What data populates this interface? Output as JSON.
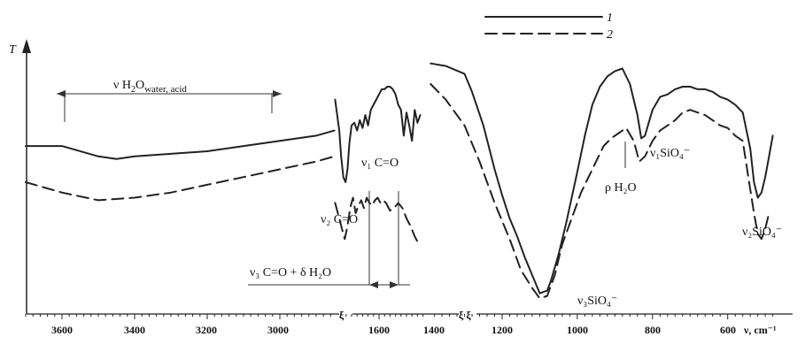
{
  "chart_data": {
    "type": "line",
    "y_axis_label": "T",
    "x_axis_label": "ν, cm⁻¹",
    "x_reversed": true,
    "x_breaks": [
      "1800–1750",
      "1450–1400"
    ],
    "tick_labels": [
      "3600",
      "3400",
      "3200",
      "3000",
      "1600",
      "1400",
      "1200",
      "1000",
      "800",
      "600"
    ],
    "legend": [
      {
        "label": "1",
        "style": "solid"
      },
      {
        "label": "2",
        "style": "dashed"
      }
    ],
    "annotations": {
      "water_acid": {
        "prefix": "ν H",
        "sub": "2",
        "mid": "O",
        "sub2": "water, acid"
      },
      "v1co": "ν₁ C=O",
      "v2co": "ν₂ C=O",
      "v3co": "ν₃ C=O + δ H₂O",
      "rho_h2o": "ρ H₂O",
      "v1sio4": "ν₁SiO₄⁻",
      "v3sio4": "ν₃SiO₄⁻",
      "v2sio4": "ν₂SiO₄⁻"
    },
    "series": [
      {
        "name": "1",
        "segments": [
          {
            "x": [
              3700,
              3600,
              3500,
              3450,
              3400,
              3300,
              3200,
              3100,
              3000,
              2900,
              2850
            ],
            "y": [
              0.64,
              0.64,
              0.6,
              0.59,
              0.6,
              0.61,
              0.62,
              0.64,
              0.66,
              0.68,
              0.7
            ]
          },
          {
            "x": [
              1760,
              1745,
              1738,
              1730,
              1722,
              1715,
              1708,
              1700,
              1690,
              1680,
              1670,
              1660,
              1650,
              1640,
              1630,
              1620,
              1610,
              1600,
              1590,
              1580,
              1570,
              1560,
              1550,
              1540,
              1530,
              1520,
              1510,
              1500,
              1490,
              1480,
              1470,
              1460,
              1450
            ],
            "y": [
              0.82,
              0.7,
              0.6,
              0.52,
              0.5,
              0.55,
              0.65,
              0.72,
              0.73,
              0.7,
              0.74,
              0.71,
              0.76,
              0.72,
              0.78,
              0.8,
              0.82,
              0.84,
              0.86,
              0.86,
              0.87,
              0.87,
              0.86,
              0.84,
              0.8,
              0.78,
              0.68,
              0.77,
              0.72,
              0.66,
              0.78,
              0.73,
              0.76
            ]
          },
          {
            "x": [
              1390,
              1350,
              1300,
              1280,
              1250,
              1220,
              1200,
              1180,
              1160,
              1140,
              1120,
              1100,
              1080,
              1070,
              1050,
              1030,
              1000,
              980,
              960,
              940,
              920,
              900,
              880,
              860,
              840,
              830,
              820,
              800,
              780,
              760,
              740,
              720,
              700,
              680,
              660,
              640,
              620,
              600,
              580,
              560,
              540,
              530,
              520,
              510,
              500,
              490,
              480
            ],
            "y": [
              0.96,
              0.95,
              0.92,
              0.85,
              0.72,
              0.55,
              0.45,
              0.36,
              0.29,
              0.21,
              0.14,
              0.07,
              0.08,
              0.12,
              0.22,
              0.34,
              0.54,
              0.68,
              0.8,
              0.87,
              0.91,
              0.93,
              0.94,
              0.88,
              0.76,
              0.67,
              0.68,
              0.78,
              0.83,
              0.84,
              0.86,
              0.87,
              0.87,
              0.86,
              0.86,
              0.85,
              0.83,
              0.82,
              0.8,
              0.77,
              0.63,
              0.5,
              0.44,
              0.46,
              0.52,
              0.6,
              0.68
            ]
          }
        ]
      },
      {
        "name": "2",
        "segments": [
          {
            "x": [
              3700,
              3600,
              3500,
              3400,
              3300,
              3200,
              3100,
              3000,
              2900,
              2850
            ],
            "y": [
              0.5,
              0.46,
              0.43,
              0.44,
              0.46,
              0.49,
              0.52,
              0.55,
              0.58,
              0.6
            ]
          },
          {
            "x": [
              1760,
              1745,
              1735,
              1725,
              1715,
              1705,
              1695,
              1685,
              1675,
              1665,
              1655,
              1645,
              1635,
              1625,
              1615,
              1605,
              1595,
              1585,
              1575,
              1560,
              1545,
              1530,
              1515,
              1500,
              1485,
              1470,
              1460,
              1450
            ],
            "y": [
              0.42,
              0.36,
              0.32,
              0.28,
              0.33,
              0.4,
              0.44,
              0.38,
              0.41,
              0.43,
              0.4,
              0.44,
              0.42,
              0.41,
              0.43,
              0.44,
              0.42,
              0.43,
              0.42,
              0.39,
              0.4,
              0.42,
              0.4,
              0.36,
              0.33,
              0.29,
              0.27,
              0.26
            ]
          },
          {
            "x": [
              1390,
              1350,
              1300,
              1260,
              1220,
              1180,
              1150,
              1120,
              1100,
              1080,
              1060,
              1040,
              1010,
              990,
              970,
              950,
              930,
              910,
              890,
              870,
              850,
              835,
              820,
              800,
              780,
              760,
              740,
              720,
              700,
              680,
              660,
              640,
              620,
              600,
              580,
              560,
              545,
              530,
              520,
              510,
              500,
              490
            ],
            "y": [
              0.88,
              0.82,
              0.72,
              0.58,
              0.42,
              0.28,
              0.16,
              0.09,
              0.05,
              0.06,
              0.14,
              0.26,
              0.38,
              0.46,
              0.52,
              0.58,
              0.64,
              0.67,
              0.69,
              0.71,
              0.66,
              0.58,
              0.6,
              0.66,
              0.7,
              0.72,
              0.74,
              0.77,
              0.78,
              0.77,
              0.76,
              0.74,
              0.72,
              0.71,
              0.68,
              0.66,
              0.52,
              0.38,
              0.3,
              0.28,
              0.32,
              0.38
            ]
          }
        ]
      }
    ]
  }
}
